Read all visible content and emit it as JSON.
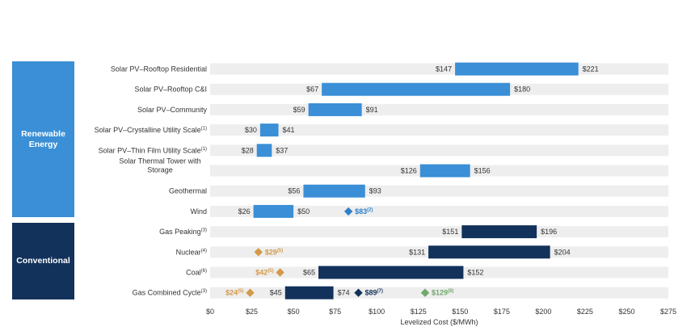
{
  "chart_data": {
    "type": "bar",
    "orientation": "horizontal-range",
    "xlabel": "Levelized Cost ($/MWh)",
    "xlim": [
      0,
      275
    ],
    "x_ticks": [
      "$0",
      "$25",
      "$50",
      "$75",
      "$100",
      "$125",
      "$150",
      "$175",
      "$200",
      "$225",
      "$250",
      "$275"
    ],
    "groups": [
      {
        "name": "Renewable\nEnergy",
        "color": "#3a8fd6",
        "rows": [
          0,
          7
        ]
      },
      {
        "name": "Conventional",
        "color": "#13325b",
        "rows": [
          8,
          11
        ]
      }
    ],
    "rows": [
      {
        "label": "Solar PV–Rooftop Residential",
        "note": "",
        "low": 147,
        "high": 221,
        "low_label": "$147",
        "high_label": "$221",
        "color": "#3a8fd6",
        "markers": []
      },
      {
        "label": "Solar PV–Rooftop C&I",
        "note": "",
        "low": 67,
        "high": 180,
        "low_label": "$67",
        "high_label": "$180",
        "color": "#3a8fd6",
        "markers": []
      },
      {
        "label": "Solar PV–Community",
        "note": "",
        "low": 59,
        "high": 91,
        "low_label": "$59",
        "high_label": "$91",
        "color": "#3a8fd6",
        "markers": []
      },
      {
        "label": "Solar PV–Crystalline Utility Scale",
        "note": "(1)",
        "low": 30,
        "high": 41,
        "low_label": "$30",
        "high_label": "$41",
        "color": "#3a8fd6",
        "markers": []
      },
      {
        "label": "Solar PV–Thin Film Utility Scale",
        "note": "(1)",
        "low": 28,
        "high": 37,
        "low_label": "$28",
        "high_label": "$37",
        "color": "#3a8fd6",
        "markers": []
      },
      {
        "label": "Solar Thermal Tower with\nStorage",
        "note": "",
        "low": 126,
        "high": 156,
        "low_label": "$126",
        "high_label": "$156",
        "color": "#3a8fd6",
        "markers": []
      },
      {
        "label": "Geothermal",
        "note": "",
        "low": 56,
        "high": 93,
        "low_label": "$56",
        "high_label": "$93",
        "color": "#3a8fd6",
        "markers": []
      },
      {
        "label": "Wind",
        "note": "",
        "low": 26,
        "high": 50,
        "low_label": "$26",
        "high_label": "$50",
        "color": "#3a8fd6",
        "markers": [
          {
            "value": 83,
            "label": "$83",
            "note": "(2)",
            "color": "#2f7fc9",
            "label_side": "right"
          }
        ]
      },
      {
        "label": "Gas Peaking",
        "note": "(3)",
        "low": 151,
        "high": 196,
        "low_label": "$151",
        "high_label": "$196",
        "color": "#13325b",
        "markers": []
      },
      {
        "label": "Nuclear",
        "note": "(4)",
        "low": 131,
        "high": 204,
        "low_label": "$131",
        "high_label": "$204",
        "color": "#13325b",
        "markers": [
          {
            "value": 29,
            "label": "$29",
            "note": "(5)",
            "color": "#d39a4a",
            "label_side": "right"
          }
        ]
      },
      {
        "label": "Coal",
        "note": "(6)",
        "low": 65,
        "high": 152,
        "low_label": "$65",
        "high_label": "$152",
        "color": "#13325b",
        "markers": [
          {
            "value": 42,
            "label": "$42",
            "note": "(5)",
            "color": "#d39a4a",
            "label_side": "left"
          }
        ]
      },
      {
        "label": "Gas Combined Cycle",
        "note": "(3)",
        "low": 45,
        "high": 74,
        "low_label": "$45",
        "high_label": "$74",
        "color": "#13325b",
        "markers": [
          {
            "value": 24,
            "label": "$24",
            "note": "(5)",
            "color": "#d39a4a",
            "label_side": "left"
          },
          {
            "value": 89,
            "label": "$89",
            "note": "(7)",
            "color": "#13325b",
            "label_side": "right"
          },
          {
            "value": 129,
            "label": "$129",
            "note": "(8)",
            "color": "#6fa86a",
            "label_side": "right"
          }
        ]
      }
    ]
  }
}
